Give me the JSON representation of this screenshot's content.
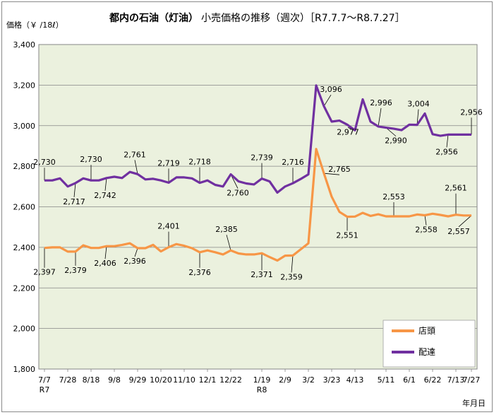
{
  "chart_data": {
    "type": "line",
    "title": "都内の石油（灯油）",
    "subtitle": "小売価格の推移（週次）［R7.7.7～R8.7.27］",
    "ylabel": "価格（￥ /18ℓ）",
    "xlabel": "年月日",
    "ylim": [
      1800,
      3400
    ],
    "yticks": [
      "1,800",
      "2,000",
      "2,200",
      "2,400",
      "2,600",
      "2,800",
      "3,000",
      "3,200",
      "3,400"
    ],
    "grid": true,
    "legend_position": "bottom-right",
    "x_tick_labels": [
      {
        "index": 0,
        "label": "7/7",
        "sub": "R7"
      },
      {
        "index": 3,
        "label": "7/28"
      },
      {
        "index": 6,
        "label": "8/18"
      },
      {
        "index": 9,
        "label": "9/8"
      },
      {
        "index": 12,
        "label": "9/29"
      },
      {
        "index": 15,
        "label": "10/20"
      },
      {
        "index": 18,
        "label": "11/10"
      },
      {
        "index": 21,
        "label": "12/1"
      },
      {
        "index": 24,
        "label": "12/22"
      },
      {
        "index": 28,
        "label": "1/19",
        "sub": "R8"
      },
      {
        "index": 31,
        "label": "2/9"
      },
      {
        "index": 34,
        "label": "3/2"
      },
      {
        "index": 37,
        "label": "3/23"
      },
      {
        "index": 40,
        "label": "4/13"
      },
      {
        "index": 44,
        "label": "5/11"
      },
      {
        "index": 47,
        "label": "6/1"
      },
      {
        "index": 50,
        "label": "6/22"
      },
      {
        "index": 53,
        "label": "7/13"
      },
      {
        "index": 55,
        "label": "7/27"
      }
    ],
    "series": [
      {
        "name": "店頭",
        "color": "#f79646",
        "values": [
          2397,
          2400,
          2400,
          2379,
          2379,
          2410,
          2397,
          2397,
          2406,
          2406,
          2412,
          2420,
          2396,
          2396,
          2412,
          2380,
          2401,
          2416,
          2408,
          2396,
          2376,
          2385,
          2376,
          2365,
          2385,
          2370,
          2365,
          2365,
          2371,
          2352,
          2335,
          2359,
          2360,
          2390,
          2420,
          2885,
          2765,
          2650,
          2575,
          2551,
          2552,
          2570,
          2555,
          2563,
          2553,
          2553,
          2553,
          2553,
          2562,
          2558,
          2566,
          2560,
          2553,
          2561,
          2557,
          2557
        ]
      },
      {
        "name": "配達",
        "color": "#7030a0",
        "values": [
          2730,
          2730,
          2740,
          2700,
          2717,
          2740,
          2730,
          2730,
          2742,
          2748,
          2742,
          2772,
          2761,
          2735,
          2738,
          2730,
          2719,
          2745,
          2745,
          2740,
          2718,
          2730,
          2708,
          2700,
          2760,
          2725,
          2715,
          2710,
          2739,
          2725,
          2670,
          2700,
          2716,
          2737,
          2760,
          3198,
          3096,
          3020,
          3025,
          3005,
          2977,
          3130,
          3020,
          2996,
          2990,
          2985,
          2978,
          3005,
          3004,
          3060,
          2958,
          2950,
          2956,
          2956,
          2956,
          2956
        ]
      }
    ],
    "annotations": [
      {
        "series": 1,
        "index": 0,
        "text": "2,730"
      },
      {
        "series": 1,
        "index": 4,
        "text": "2,717"
      },
      {
        "series": 1,
        "index": 6,
        "text": "2,730"
      },
      {
        "series": 1,
        "index": 8,
        "text": "2,742"
      },
      {
        "series": 1,
        "index": 12,
        "text": "2,761"
      },
      {
        "series": 1,
        "index": 16,
        "text": "2,719"
      },
      {
        "series": 1,
        "index": 20,
        "text": "2,718"
      },
      {
        "series": 1,
        "index": 24,
        "text": "2,760"
      },
      {
        "series": 1,
        "index": 28,
        "text": "2,739"
      },
      {
        "series": 1,
        "index": 32,
        "text": "2,716"
      },
      {
        "series": 1,
        "index": 36,
        "text": "3,096"
      },
      {
        "series": 1,
        "index": 40,
        "text": "2,977"
      },
      {
        "series": 1,
        "index": 43,
        "text": "2,996"
      },
      {
        "series": 1,
        "index": 44,
        "text": "2,990"
      },
      {
        "series": 1,
        "index": 48,
        "text": "3,004"
      },
      {
        "series": 1,
        "index": 52,
        "text": "2,956"
      },
      {
        "series": 1,
        "index": 55,
        "text": "2,956"
      },
      {
        "series": 0,
        "index": 0,
        "text": "2,397"
      },
      {
        "series": 0,
        "index": 4,
        "text": "2,379"
      },
      {
        "series": 0,
        "index": 8,
        "text": "2,406"
      },
      {
        "series": 0,
        "index": 12,
        "text": "2,396"
      },
      {
        "series": 0,
        "index": 16,
        "text": "2,401"
      },
      {
        "series": 0,
        "index": 20,
        "text": "2,376"
      },
      {
        "series": 0,
        "index": 24,
        "text": "2,385"
      },
      {
        "series": 0,
        "index": 28,
        "text": "2,371"
      },
      {
        "series": 0,
        "index": 32,
        "text": "2,359"
      },
      {
        "series": 0,
        "index": 36,
        "text": "2,765"
      },
      {
        "series": 0,
        "index": 39,
        "text": "2,551"
      },
      {
        "series": 0,
        "index": 45,
        "text": "2,553"
      },
      {
        "series": 0,
        "index": 49,
        "text": "2,558"
      },
      {
        "series": 0,
        "index": 53,
        "text": "2,561"
      },
      {
        "series": 0,
        "index": 55,
        "text": "2,557"
      }
    ]
  }
}
